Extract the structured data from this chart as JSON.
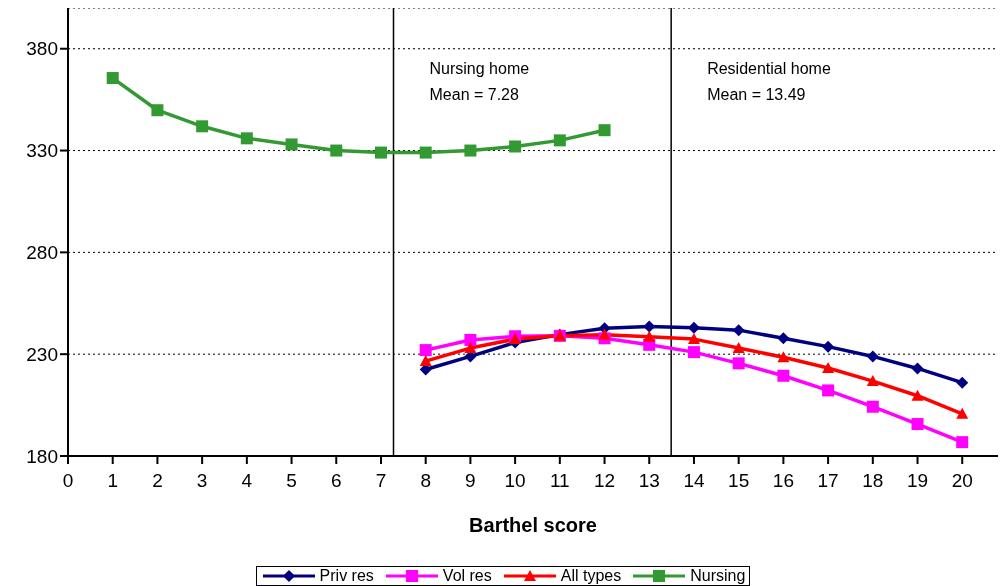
{
  "chart_data": {
    "type": "line",
    "xlabel": "Barthel score",
    "xlim": [
      0,
      20.8
    ],
    "xticks": [
      0,
      1,
      2,
      3,
      4,
      5,
      6,
      7,
      8,
      9,
      10,
      11,
      12,
      13,
      14,
      15,
      16,
      17,
      18,
      19,
      20
    ],
    "ylim": [
      180,
      400
    ],
    "yticks": [
      180,
      230,
      280,
      330,
      380
    ],
    "grid": "y",
    "legend": "bottom",
    "series": [
      {
        "name": "Priv res",
        "color": "#000080",
        "marker": "diamond",
        "x": [
          8,
          9,
          10,
          11,
          12,
          13,
          14,
          15,
          16,
          17,
          18,
          19,
          20
        ],
        "values": [
          222.5,
          228.9,
          235.7,
          239.6,
          242.7,
          243.6,
          243,
          241.8,
          237.8,
          233.7,
          228.9,
          223,
          216
        ]
      },
      {
        "name": "Vol res",
        "color": "#ff00ff",
        "marker": "square",
        "x": [
          8,
          9,
          10,
          11,
          12,
          13,
          14,
          15,
          16,
          17,
          18,
          19,
          20
        ],
        "values": [
          232,
          237,
          238.8,
          239,
          237.8,
          234.6,
          231,
          225.5,
          219.4,
          212.2,
          204.2,
          195.7,
          186.8
        ]
      },
      {
        "name": "All types",
        "color": "#ff0000",
        "marker": "triangle",
        "x": [
          8,
          9,
          10,
          11,
          12,
          13,
          14,
          15,
          16,
          17,
          18,
          19,
          20
        ],
        "values": [
          226.6,
          233,
          237.4,
          239,
          239.6,
          238.6,
          237.4,
          233,
          228.5,
          223.2,
          216.8,
          209.6,
          200.7
        ]
      },
      {
        "name": "Nursing",
        "color": "#339933",
        "marker": "square",
        "x": [
          1,
          2,
          3,
          4,
          5,
          6,
          7,
          8,
          9,
          10,
          11,
          12
        ],
        "values": [
          365.6,
          349.8,
          341.9,
          336,
          333,
          330,
          329,
          329,
          330,
          332,
          335,
          340
        ]
      }
    ],
    "ref_lines": [
      {
        "axis": "x",
        "value": 7.28,
        "label": "Nursing home\nMean = 7.28",
        "color": "#000000"
      },
      {
        "axis": "x",
        "value": 13.49,
        "label": "Residential home\nMean = 13.49",
        "color": "#000000"
      }
    ]
  }
}
